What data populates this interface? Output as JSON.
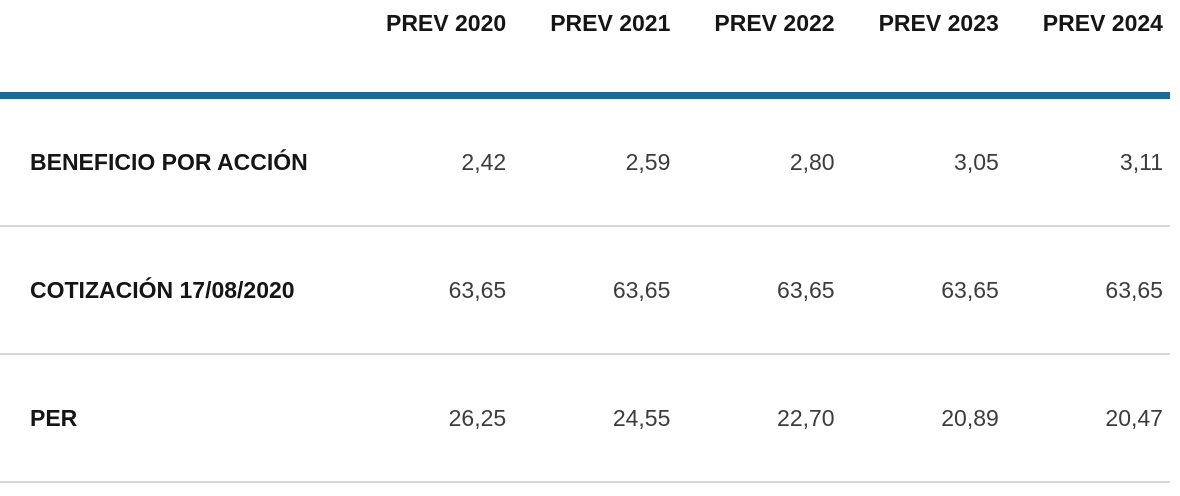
{
  "colors": {
    "accent": "#1d6a96",
    "separator": "#d8d8d8",
    "header_text": "#151515",
    "number_text": "#3c3c3c",
    "background": "#ffffff"
  },
  "table": {
    "columns": [
      "PREV 2020",
      "PREV 2021",
      "PREV 2022",
      "PREV 2023",
      "PREV 2024"
    ],
    "rows": [
      {
        "label": "BENEFICIO POR ACCIÓN",
        "values": [
          "2,42",
          "2,59",
          "2,80",
          "3,05",
          "3,11"
        ]
      },
      {
        "label": "COTIZACIÓN 17/08/2020",
        "values": [
          "63,65",
          "63,65",
          "63,65",
          "63,65",
          "63,65"
        ]
      },
      {
        "label": "PER",
        "values": [
          "26,25",
          "24,55",
          "22,70",
          "20,89",
          "20,47"
        ]
      }
    ]
  },
  "chart_data": {
    "type": "table",
    "title": "",
    "categories": [
      "PREV 2020",
      "PREV 2021",
      "PREV 2022",
      "PREV 2023",
      "PREV 2024"
    ],
    "series": [
      {
        "name": "BENEFICIO POR ACCIÓN",
        "values": [
          2.42,
          2.59,
          2.8,
          3.05,
          3.11
        ]
      },
      {
        "name": "COTIZACIÓN 17/08/2020",
        "values": [
          63.65,
          63.65,
          63.65,
          63.65,
          63.65
        ]
      },
      {
        "name": "PER",
        "values": [
          26.25,
          24.55,
          22.7,
          20.89,
          20.47
        ]
      }
    ],
    "layout_hints": {
      "decimal_separator": ",",
      "value_alignment": "right",
      "header_rule_color": "#1d6a96",
      "row_rule_color": "#d8d8d8"
    }
  }
}
